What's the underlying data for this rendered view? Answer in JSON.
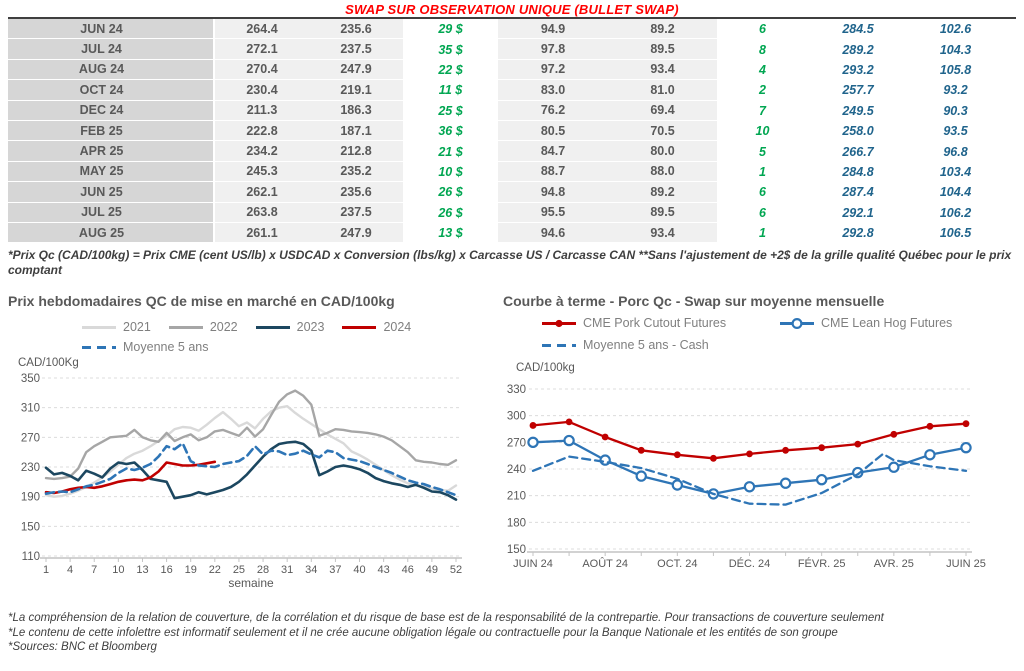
{
  "header": {
    "title": "SWAP SUR OBSERVATION UNIQUE (BULLET SWAP)"
  },
  "colors": {
    "title_red": "#ff0000",
    "table_text_gray": "#595959",
    "table_green": "#00a651",
    "table_blue": "#20648c",
    "series_2021": "#d9d9d9",
    "series_2022": "#a6a6a6",
    "series_2023": "#1c4760",
    "series_2024": "#c00000",
    "series_avg_blue": "#2e75b6"
  },
  "table": {
    "rows": [
      {
        "month": "JUN 24",
        "values": [
          "264.4",
          "235.6",
          "29 $",
          "94.9",
          "89.2",
          "6",
          "284.5",
          "102.6"
        ]
      },
      {
        "month": "JUL 24",
        "values": [
          "272.1",
          "237.5",
          "35 $",
          "97.8",
          "89.5",
          "8",
          "289.2",
          "104.3"
        ]
      },
      {
        "month": "AUG 24",
        "values": [
          "270.4",
          "247.9",
          "22 $",
          "97.2",
          "93.4",
          "4",
          "293.2",
          "105.8"
        ]
      },
      {
        "month": "OCT 24",
        "values": [
          "230.4",
          "219.1",
          "11 $",
          "83.0",
          "81.0",
          "2",
          "257.7",
          "93.2"
        ]
      },
      {
        "month": "DEC 24",
        "values": [
          "211.3",
          "186.3",
          "25 $",
          "76.2",
          "69.4",
          "7",
          "249.5",
          "90.3"
        ]
      },
      {
        "month": "FEB 25",
        "values": [
          "222.8",
          "187.1",
          "36 $",
          "80.5",
          "70.5",
          "10",
          "258.0",
          "93.5"
        ]
      },
      {
        "month": "APR 25",
        "values": [
          "234.2",
          "212.8",
          "21 $",
          "84.7",
          "80.0",
          "5",
          "266.7",
          "96.8"
        ]
      },
      {
        "month": "MAY 25",
        "values": [
          "245.3",
          "235.2",
          "10 $",
          "88.7",
          "88.0",
          "1",
          "284.8",
          "103.4"
        ]
      },
      {
        "month": "JUN 25",
        "values": [
          "262.1",
          "235.6",
          "26 $",
          "94.8",
          "89.2",
          "6",
          "287.4",
          "104.4"
        ]
      },
      {
        "month": "JUL 25",
        "values": [
          "263.8",
          "237.5",
          "26 $",
          "95.5",
          "89.5",
          "6",
          "292.1",
          "106.2"
        ]
      },
      {
        "month": "AUG 25",
        "values": [
          "261.1",
          "247.9",
          "13 $",
          "94.6",
          "93.4",
          "1",
          "292.8",
          "106.5"
        ]
      }
    ],
    "footnote": "*Prix Qc (CAD/100kg) = Prix CME (cent US/lb) x USDCAD x Conversion (lbs/kg) x Carcasse US / Carcasse CAN **Sans l'ajustement de +2$ de la grille qualité Québec pour le prix comptant"
  },
  "chart_data": [
    {
      "type": "line",
      "title": "Prix hebdomadaires QC de mise en marché en CAD/100kg",
      "ylabel": "CAD/100Kg",
      "xlabel": "semaine",
      "ylim": [
        110,
        350
      ],
      "yticks": [
        110,
        150,
        190,
        230,
        270,
        310,
        350
      ],
      "xticks": [
        1,
        4,
        7,
        10,
        13,
        16,
        19,
        22,
        25,
        28,
        31,
        34,
        37,
        40,
        43,
        46,
        49,
        52
      ],
      "x_start": 1,
      "grid": true,
      "legend_position": "top",
      "series": [
        {
          "name": "2021",
          "color": "#d9d9d9",
          "width": 2.4,
          "swatch": "line",
          "values": [
            192,
            190,
            191,
            194,
            198,
            203,
            209,
            216,
            224,
            233,
            242,
            248,
            252,
            258,
            265,
            272,
            281,
            284,
            283,
            279,
            287,
            296,
            304,
            295,
            285,
            290,
            282,
            295,
            305,
            310,
            312,
            303,
            295,
            288,
            281,
            274,
            268,
            262,
            251,
            246,
            240,
            233,
            226,
            219,
            213,
            208,
            205,
            203,
            201,
            199,
            198,
            205
          ]
        },
        {
          "name": "2022",
          "color": "#a6a6a6",
          "width": 2.4,
          "swatch": "line",
          "values": [
            215,
            214,
            215,
            217,
            228,
            250,
            258,
            264,
            270,
            271,
            272,
            280,
            270,
            266,
            264,
            276,
            265,
            270,
            274,
            266,
            270,
            278,
            280,
            276,
            272,
            283,
            271,
            281,
            300,
            318,
            328,
            333,
            326,
            314,
            272,
            276,
            281,
            280,
            278,
            277,
            276,
            274,
            271,
            266,
            258,
            250,
            239,
            237,
            236,
            234,
            233,
            239
          ]
        },
        {
          "name": "2023",
          "color": "#1c4760",
          "width": 2.6,
          "swatch": "line",
          "values": [
            229,
            220,
            222,
            218,
            212,
            225,
            221,
            216,
            228,
            236,
            234,
            236,
            226,
            214,
            212,
            210,
            188,
            190,
            192,
            196,
            193,
            196,
            199,
            203,
            210,
            220,
            232,
            244,
            254,
            261,
            263,
            264,
            261,
            252,
            219,
            224,
            230,
            232,
            230,
            227,
            222,
            215,
            211,
            208,
            206,
            203,
            206,
            202,
            197,
            196,
            192,
            186
          ]
        },
        {
          "name": "2024",
          "color": "#c00000",
          "width": 2.6,
          "swatch": "line",
          "values": [
            196,
            195,
            197,
            200,
            202,
            203,
            202,
            204,
            207,
            210,
            212,
            213,
            212,
            216,
            224,
            236,
            234,
            232,
            232,
            233,
            235,
            237
          ]
        },
        {
          "name": "Moyenne 5 ans",
          "color": "#2e75b6",
          "width": 2.6,
          "dash": "8 5",
          "swatch": "dash",
          "values": [
            194,
            196,
            197,
            196,
            200,
            204,
            206,
            210,
            214,
            222,
            228,
            226,
            229,
            234,
            244,
            258,
            254,
            262,
            238,
            232,
            231,
            230,
            234,
            236,
            238,
            245,
            258,
            247,
            252,
            251,
            246,
            248,
            252,
            247,
            243,
            252,
            250,
            242,
            240,
            238,
            234,
            230,
            226,
            222,
            217,
            212,
            209,
            207,
            203,
            200,
            196,
            192
          ]
        }
      ]
    },
    {
      "type": "line",
      "title": "Courbe à terme - Porc Qc - Swap sur moyenne mensuelle",
      "ylabel": "CAD/100kg",
      "xlabel": "",
      "ylim": [
        150,
        330
      ],
      "yticks": [
        150,
        180,
        210,
        240,
        270,
        300,
        330
      ],
      "xtick_labels": [
        "JUIN 24",
        "AOÛT 24",
        "OCT. 24",
        "DÉC. 24",
        "FÉVR. 25",
        "AVR. 25",
        "JUIN 25"
      ],
      "xtick_pos": [
        0,
        2,
        4,
        6,
        8,
        10,
        12
      ],
      "xtick_marks": [
        0,
        1,
        2,
        3,
        4,
        5,
        6,
        7,
        8,
        9,
        10,
        11,
        12
      ],
      "grid": true,
      "legend_position": "top",
      "series": [
        {
          "name": "CME Pork Cutout Futures",
          "color": "#c00000",
          "width": 2.3,
          "marker": "dot",
          "swatch": "line-dot",
          "values": [
            289,
            293,
            276,
            261,
            256,
            252,
            257,
            261,
            264,
            268,
            279,
            288,
            291
          ]
        },
        {
          "name": "CME Lean Hog Futures",
          "color": "#2e75b6",
          "width": 2.3,
          "marker": "circle",
          "swatch": "line-circle",
          "values": [
            270,
            272,
            250,
            232,
            222,
            212,
            220,
            224,
            228,
            236,
            242,
            256,
            264
          ]
        },
        {
          "name": "Moyenne 5 ans - Cash",
          "color": "#2e75b6",
          "width": 2.3,
          "dash": "8 5",
          "swatch": "dash",
          "x": [
            0,
            1,
            2,
            3,
            4,
            5,
            6,
            7,
            8,
            9,
            9.7,
            10,
            11,
            12
          ],
          "values": [
            238,
            254,
            248,
            241,
            229,
            212,
            201,
            200,
            213,
            234,
            257,
            250,
            243,
            238
          ]
        }
      ]
    }
  ],
  "footer": {
    "lines": [
      "*La compréhension de la relation de couverture, de la corrélation et du risque de base est de la responsabilité de la contrepartie. Pour transactions de couverture seulement",
      "*Le contenu de cette infolettre est informatif seulement et il ne crée aucune obligation légale ou contractuelle pour la Banque Nationale et les entités de son groupe",
      "*Sources: BNC et Bloomberg"
    ]
  }
}
